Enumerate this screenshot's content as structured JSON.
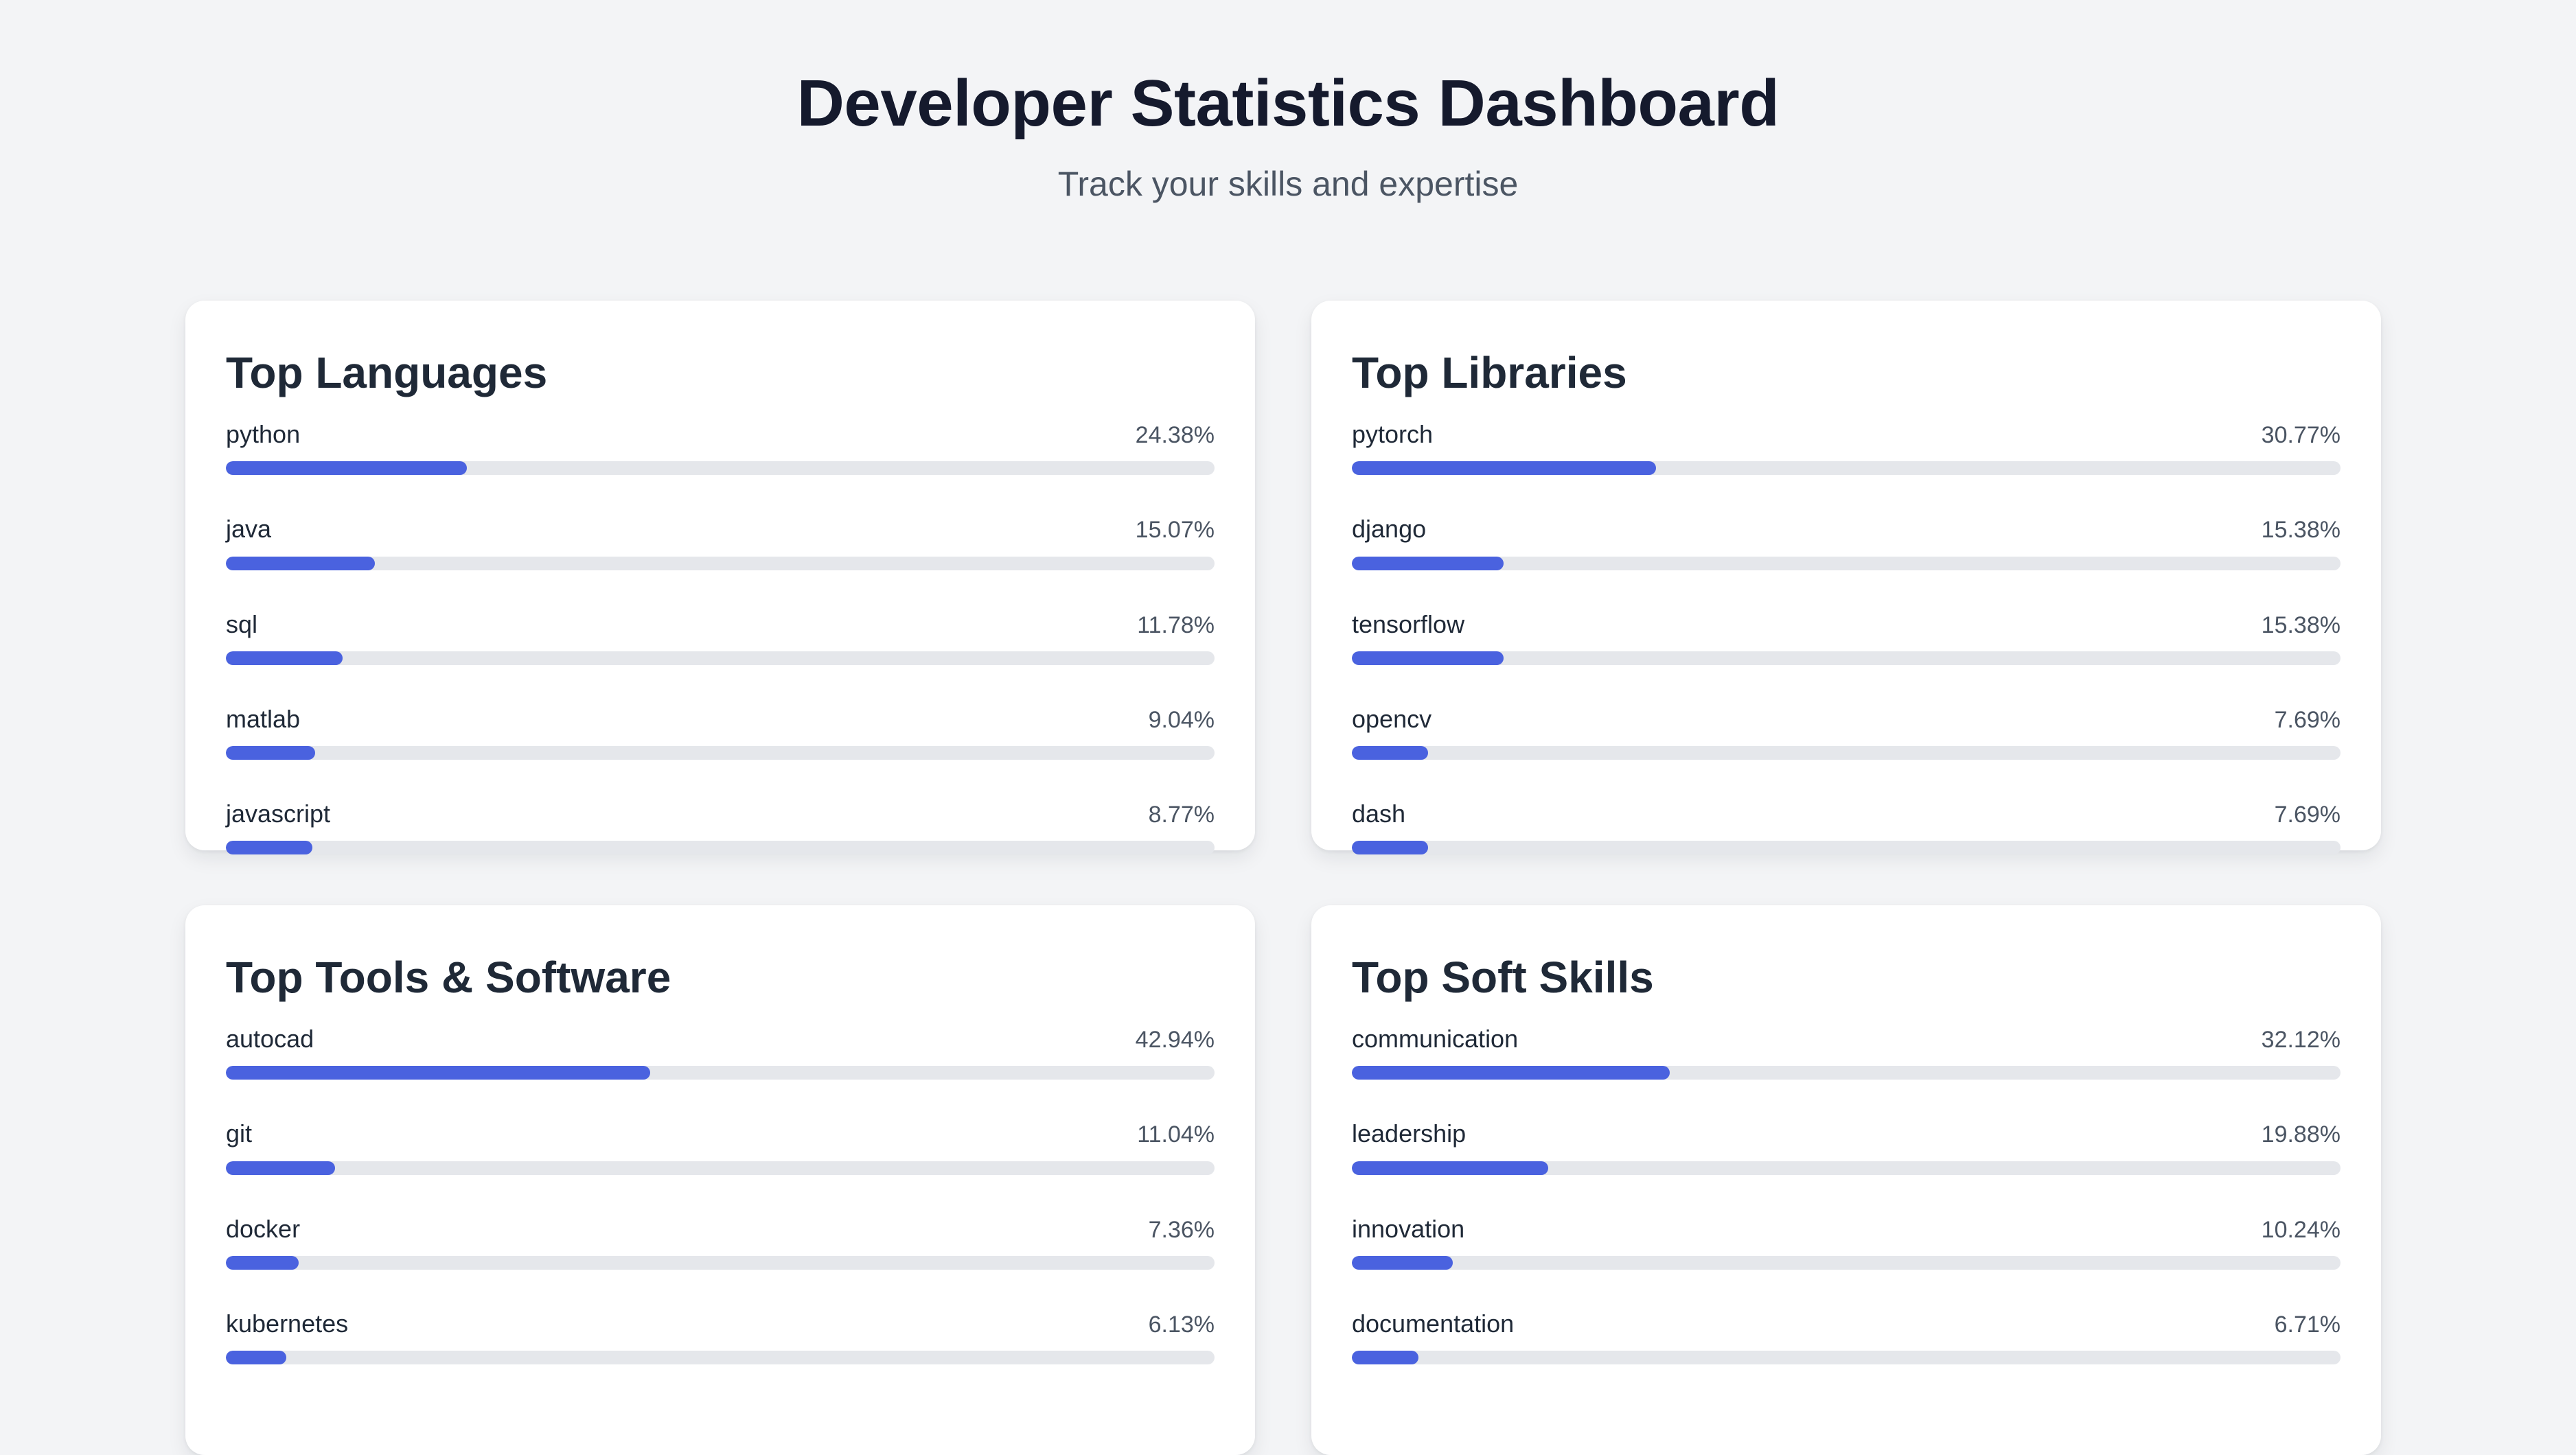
{
  "page": {
    "title": "Developer Statistics Dashboard",
    "subtitle": "Track your skills and expertise"
  },
  "cards": [
    {
      "title": "Top Languages",
      "items": [
        {
          "label": "python",
          "value": "24.38%",
          "percent": 24.38
        },
        {
          "label": "java",
          "value": "15.07%",
          "percent": 15.07
        },
        {
          "label": "sql",
          "value": "11.78%",
          "percent": 11.78
        },
        {
          "label": "matlab",
          "value": "9.04%",
          "percent": 9.04
        },
        {
          "label": "javascript",
          "value": "8.77%",
          "percent": 8.77
        }
      ]
    },
    {
      "title": "Top Libraries",
      "items": [
        {
          "label": "pytorch",
          "value": "30.77%",
          "percent": 30.77
        },
        {
          "label": "django",
          "value": "15.38%",
          "percent": 15.38
        },
        {
          "label": "tensorflow",
          "value": "15.38%",
          "percent": 15.38
        },
        {
          "label": "opencv",
          "value": "7.69%",
          "percent": 7.69
        },
        {
          "label": "dash",
          "value": "7.69%",
          "percent": 7.69
        }
      ]
    },
    {
      "title": "Top Tools & Software",
      "items": [
        {
          "label": "autocad",
          "value": "42.94%",
          "percent": 42.94
        },
        {
          "label": "git",
          "value": "11.04%",
          "percent": 11.04
        },
        {
          "label": "docker",
          "value": "7.36%",
          "percent": 7.36
        },
        {
          "label": "kubernetes",
          "value": "6.13%",
          "percent": 6.13
        }
      ]
    },
    {
      "title": "Top Soft Skills",
      "items": [
        {
          "label": "communication",
          "value": "32.12%",
          "percent": 32.12
        },
        {
          "label": "leadership",
          "value": "19.88%",
          "percent": 19.88
        },
        {
          "label": "innovation",
          "value": "10.24%",
          "percent": 10.24
        },
        {
          "label": "documentation",
          "value": "6.71%",
          "percent": 6.71
        }
      ]
    }
  ],
  "colors": {
    "background": "#f3f4f6",
    "card": "#ffffff",
    "accent": "#4a62df",
    "track": "#e5e7eb",
    "title": "#151a2d",
    "muted": "#4b5563"
  }
}
